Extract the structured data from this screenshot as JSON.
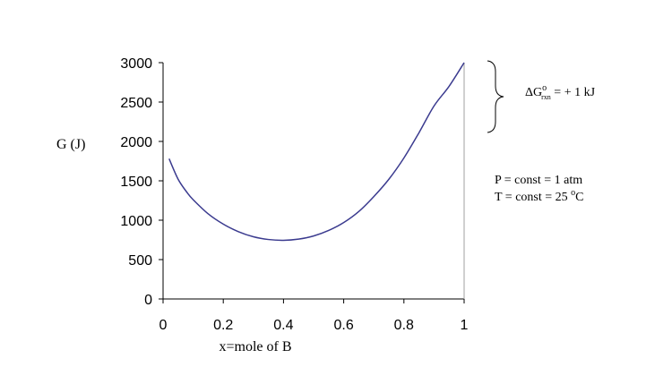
{
  "chart_data": {
    "type": "line",
    "ylabel": "G (J)",
    "xlabel": "x=mole of B",
    "xlim": [
      0,
      1
    ],
    "ylim": [
      0,
      3000
    ],
    "x_ticks": [
      "0",
      "0.2",
      "0.4",
      "0.6",
      "0.8",
      "1"
    ],
    "y_ticks": [
      "0",
      "500",
      "1000",
      "1500",
      "2000",
      "2500",
      "3000"
    ],
    "grid": false,
    "series": [
      {
        "color": "#3b3b8f",
        "x": [
          0.02,
          0.05,
          0.08,
          0.1,
          0.15,
          0.2,
          0.25,
          0.3,
          0.35,
          0.4,
          0.45,
          0.5,
          0.55,
          0.6,
          0.65,
          0.7,
          0.75,
          0.8,
          0.85,
          0.9,
          0.95,
          1.0
        ],
        "y": [
          1780,
          1520,
          1350,
          1260,
          1080,
          950,
          855,
          790,
          755,
          745,
          760,
          800,
          870,
          970,
          1110,
          1300,
          1520,
          1790,
          2110,
          2450,
          2700,
          3000
        ]
      }
    ],
    "annotations": {
      "delta_g_prefix": "ΔG",
      "delta_g_sup": "o",
      "delta_g_sub": "rxn",
      "delta_g_value": " = + 1 kJ",
      "pressure": "P = const = 1 atm",
      "temperature_prefix": "T = const = 25 ",
      "temperature_deg": "o",
      "temperature_unit": "C"
    }
  }
}
